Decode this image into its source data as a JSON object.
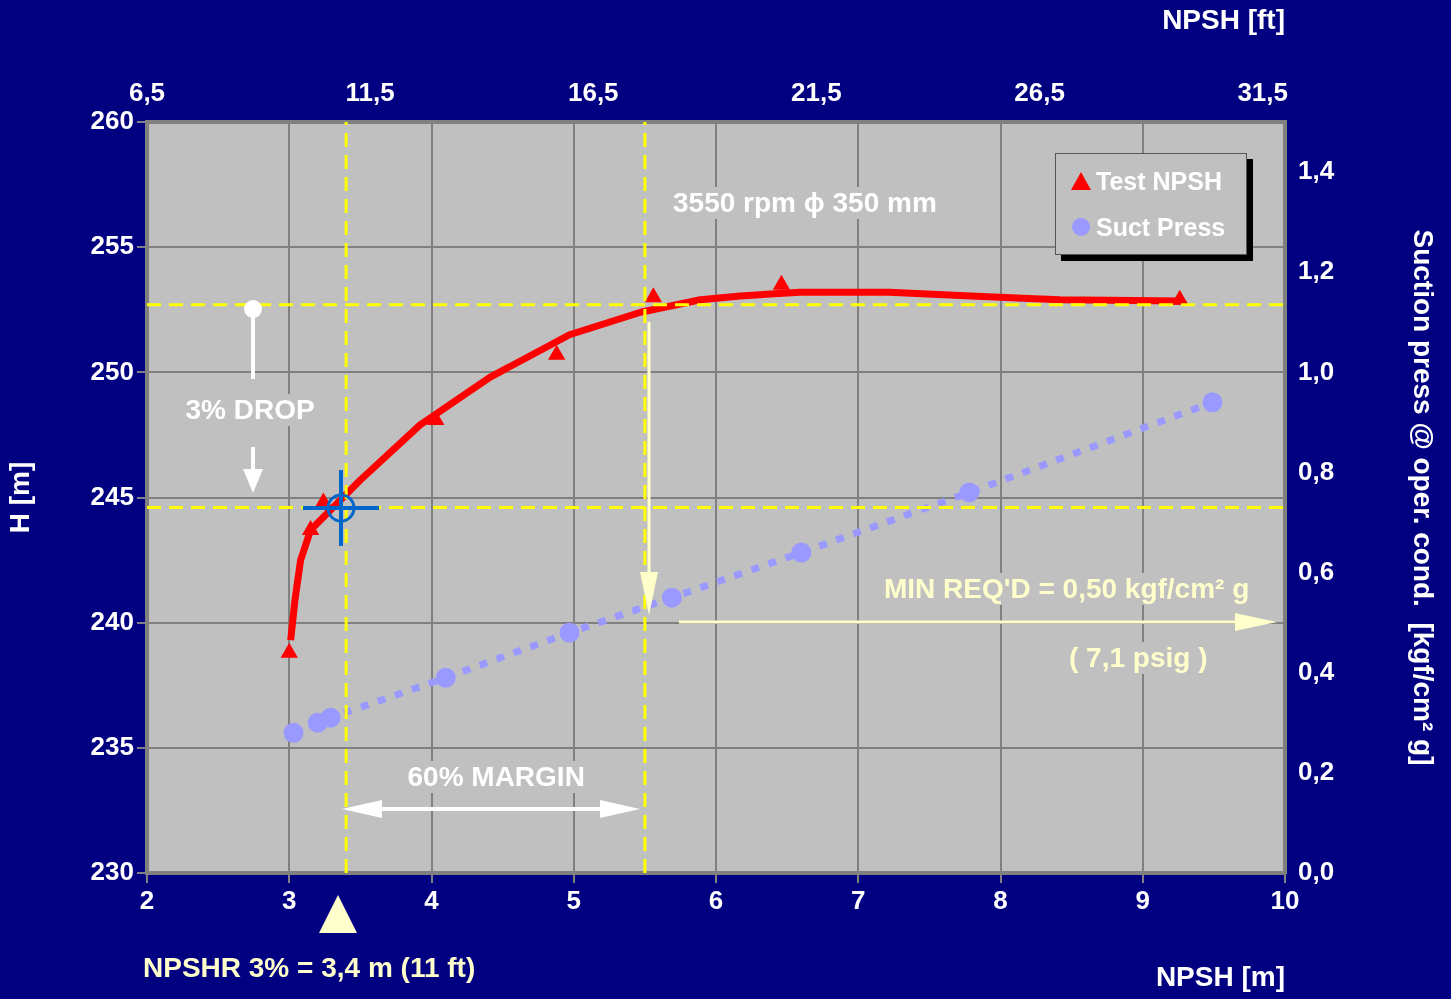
{
  "chart_data": {
    "type": "scatter",
    "xlabel": "NPSH [m]",
    "ylabel": "H [m]",
    "y2label": "Suction press @ oper. cond.  [kgf/cm² g]",
    "x2label": "NPSH [ft]",
    "xlim": [
      2,
      10
    ],
    "xticks": [
      2,
      3,
      4,
      5,
      6,
      7,
      8,
      9,
      10
    ],
    "x2lim": [
      6.5,
      32
    ],
    "x2ticks": [
      {
        "value": 6.5,
        "label": "6,5"
      },
      {
        "value": 11.5,
        "label": "11,5"
      },
      {
        "value": 16.5,
        "label": "16,5"
      },
      {
        "value": 21.5,
        "label": "21,5"
      },
      {
        "value": 26.5,
        "label": "26,5"
      },
      {
        "value": 31.5,
        "label": "31,5"
      }
    ],
    "ylim": [
      230,
      260
    ],
    "yticks": [
      230,
      235,
      240,
      245,
      250,
      255,
      260
    ],
    "y2lim": [
      0,
      1.5
    ],
    "y2ticks": [
      {
        "value": 0,
        "label": "0,0"
      },
      {
        "value": 0.2,
        "label": "0,2"
      },
      {
        "value": 0.4,
        "label": "0,4"
      },
      {
        "value": 0.6,
        "label": "0,6"
      },
      {
        "value": 0.8,
        "label": "0,8"
      },
      {
        "value": 1.0,
        "label": "1,0"
      },
      {
        "value": 1.2,
        "label": "1,2"
      },
      {
        "value": 1.4,
        "label": "1,4"
      }
    ],
    "grid": true,
    "legend": "top right",
    "series": [
      {
        "type": "scatter",
        "name": "Test NPSH",
        "color": "#ff0000",
        "marker": "triangle",
        "x": [
          3.0,
          3.15,
          3.24,
          4.03,
          4.88,
          5.56,
          6.46,
          9.26
        ],
        "values": [
          238.8,
          243.7,
          244.8,
          248.1,
          250.7,
          253.0,
          253.5,
          252.9
        ]
      },
      {
        "type": "line",
        "color": "#ff0000",
        "marker": "none",
        "x": [
          3.01,
          3.04,
          3.08,
          3.15,
          3.29,
          3.5,
          3.92,
          4.41,
          4.97,
          5.47,
          5.89,
          6.17,
          6.59,
          7.22,
          7.79,
          8.42,
          9.26
        ],
        "values": [
          239.3,
          240.9,
          242.5,
          243.7,
          244.5,
          245.7,
          247.9,
          249.8,
          251.5,
          252.4,
          252.9,
          253.05,
          253.2,
          253.2,
          253.05,
          252.9,
          252.85
        ]
      },
      {
        "type": "line",
        "name": "Suct Press",
        "color": "#9999ff",
        "axis": "y2",
        "marker": "circle",
        "line_style": "dotted",
        "x": [
          3.03,
          3.2,
          3.29,
          4.1,
          4.97,
          5.69,
          6.6,
          7.78,
          9.49
        ],
        "values": [
          0.28,
          0.3,
          0.31,
          0.39,
          0.48,
          0.55,
          0.64,
          0.76,
          0.94
        ]
      }
    ],
    "ref_lines": [
      {
        "axis": "y",
        "value": 252.7,
        "color": "#ffff00",
        "line_style": "dashed"
      },
      {
        "axis": "y",
        "value": 244.6,
        "color": "#ffff00",
        "line_style": "dashed"
      },
      {
        "axis": "x",
        "value": 3.4,
        "color": "#ffff00",
        "line_style": "dashed"
      },
      {
        "axis": "x",
        "value": 5.5,
        "color": "#ffff00",
        "line_style": "dashed"
      }
    ],
    "annotations": [
      "3550 rpm  ϕ  350 mm",
      "3% DROP",
      "60% MARGIN",
      "MIN REQ'D  = 0,50 kgf/cm² g",
      "( 7,1 psig )",
      "NPSHR 3% = 3,4 m (11 ft)"
    ]
  }
}
